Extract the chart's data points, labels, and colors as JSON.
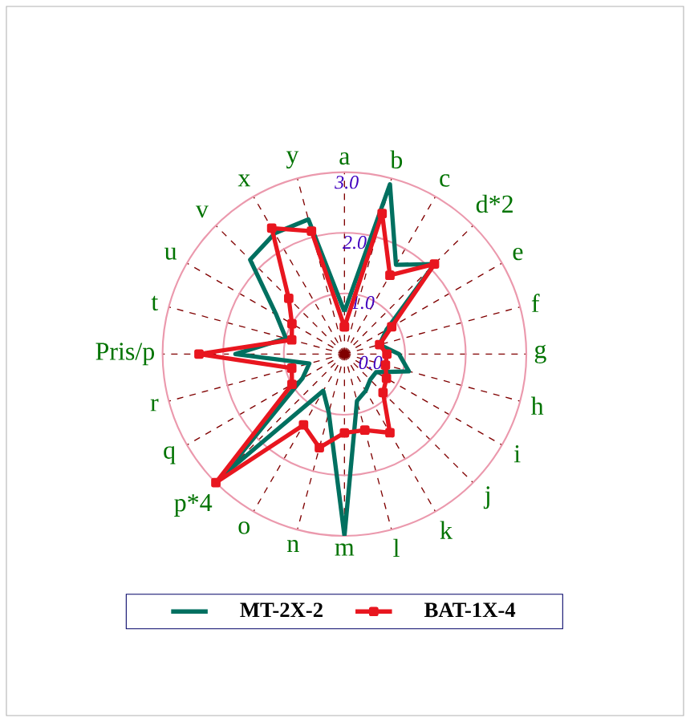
{
  "chart_data": {
    "type": "radar",
    "categories": [
      "a",
      "b",
      "c",
      "d*2",
      "e",
      "f",
      "g",
      "h",
      "i",
      "j",
      "k",
      "l",
      "m",
      "n",
      "o",
      "p*4",
      "q",
      "r",
      "Pris/p",
      "t",
      "u",
      "v",
      "x",
      "y"
    ],
    "series": [
      {
        "name": "MT-2X-2",
        "color": "#007060",
        "values": [
          0.7,
          2.9,
          1.7,
          2.1,
          0.8,
          0.6,
          0.9,
          1.1,
          0.6,
          0.6,
          0.7,
          0.8,
          3.0,
          1.0,
          0.7,
          2.8,
          0.8,
          0.6,
          1.8,
          1.0,
          1.3,
          2.2,
          2.3,
          2.3
        ]
      },
      {
        "name": "BAT-1X-4",
        "color": "#e8161f",
        "marker": "square",
        "values": [
          0.45,
          2.4,
          1.5,
          2.1,
          0.9,
          0.6,
          0.7,
          0.7,
          0.8,
          0.9,
          1.5,
          1.3,
          1.3,
          1.6,
          1.35,
          3.0,
          1.0,
          0.9,
          2.4,
          0.9,
          1.0,
          1.3,
          2.4,
          2.1
        ]
      }
    ],
    "ylim": [
      0,
      3
    ],
    "yticks": [
      {
        "value": 0,
        "label": "0.0"
      },
      {
        "value": 1,
        "label": "1.0"
      },
      {
        "value": 2,
        "label": "2.0"
      },
      {
        "value": 3,
        "label": "3.0"
      }
    ],
    "grid": true,
    "legend": "bottom"
  }
}
